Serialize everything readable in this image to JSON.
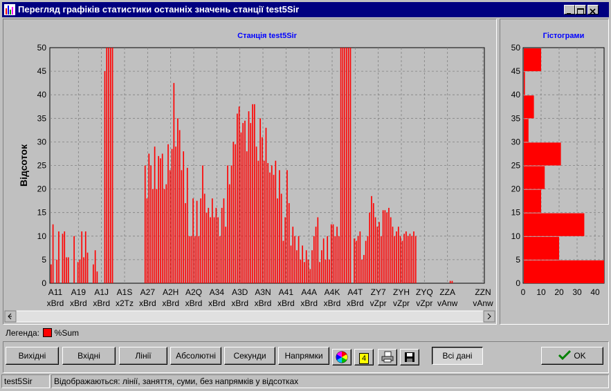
{
  "window": {
    "title": "Перегляд графіків статистики останніх значень станції test5Sir",
    "minimize_glyph": "_",
    "maximize_glyph": "□",
    "close_glyph": "✕"
  },
  "legend": {
    "label": "Легенда:",
    "series_label": "%Sum",
    "color": "#ff0000"
  },
  "buttons": {
    "outputs": "Вихідні",
    "inputs": "Вхідні",
    "lines": "Лінії",
    "absolute": "Абсолютні",
    "seconds": "Секунди",
    "directions": "Напрямки",
    "count_badge": "4",
    "all_data": "Всі дані",
    "ok": "OK"
  },
  "status": {
    "station": "test5Sir",
    "message": "Відображаються: лінії, заняття, суми, без напрямків у відсотках"
  },
  "colors": {
    "bar": "#ff0000",
    "title_text": "#0000ff",
    "plot_bg": "#c0c0c0",
    "grid": "#808080"
  },
  "chart_data": [
    {
      "type": "bar",
      "title": "Станція test5Sir",
      "ylabel": "Відсоток",
      "xlabel": "",
      "ylim": [
        0,
        50
      ],
      "yticks": [
        0,
        5,
        10,
        15,
        20,
        25,
        30,
        35,
        40,
        45,
        50
      ],
      "grid": true,
      "x_tick_labels": [
        {
          "line1": "A11",
          "line2": "xBrd"
        },
        {
          "line1": "A19",
          "line2": "xBrd"
        },
        {
          "line1": "A1J",
          "line2": "xBrd"
        },
        {
          "line1": "A1S",
          "line2": "x2Tz"
        },
        {
          "line1": "A27",
          "line2": "xBrd"
        },
        {
          "line1": "A2H",
          "line2": "xBrd"
        },
        {
          "line1": "A2Q",
          "line2": "xBrd"
        },
        {
          "line1": "A34",
          "line2": "xBrd"
        },
        {
          "line1": "A3D",
          "line2": "xBrd"
        },
        {
          "line1": "A3N",
          "line2": "xBrd"
        },
        {
          "line1": "A41",
          "line2": "xBrd"
        },
        {
          "line1": "A4A",
          "line2": "xBrd"
        },
        {
          "line1": "A4K",
          "line2": "xBrd"
        },
        {
          "line1": "A4T",
          "line2": "xBrd"
        },
        {
          "line1": "ZY7",
          "line2": "vZpr"
        },
        {
          "line1": "ZYH",
          "line2": "vZpr"
        },
        {
          "line1": "ZYQ",
          "line2": "vZpr"
        },
        {
          "line1": "ZZA",
          "line2": "vAnw"
        },
        {
          "line1": "ZZN",
          "line2": "vAnw"
        }
      ],
      "series": [
        {
          "name": "%Sum",
          "values": [
            4,
            12.5,
            0,
            5,
            11,
            0,
            10.5,
            11,
            5.5,
            5.5,
            0,
            0,
            10,
            0,
            4.5,
            5,
            11,
            5.5,
            11,
            6.5,
            0,
            0,
            4,
            7,
            2.5,
            0,
            0,
            0,
            45,
            50,
            50,
            50,
            50,
            0,
            0,
            0,
            0,
            0,
            0,
            0,
            0,
            0,
            0,
            0,
            0,
            0,
            0,
            0,
            0,
            25,
            18,
            27.5,
            25,
            20,
            29,
            20,
            27,
            26.5,
            27.5,
            20,
            21,
            29.5,
            24,
            28.5,
            42.5,
            29,
            35,
            32.5,
            24,
            28,
            17,
            24.5,
            10,
            10,
            18,
            10,
            17.5,
            10,
            18,
            25,
            19,
            15,
            16,
            14,
            18,
            14,
            16,
            14,
            10,
            16,
            18,
            12,
            25,
            21,
            25,
            30,
            29.5,
            36,
            37.5,
            32,
            34,
            34.5,
            28,
            36.5,
            34,
            38,
            38,
            29,
            26,
            35,
            31,
            26,
            33,
            25.5,
            23.5,
            25,
            23,
            26,
            18,
            24,
            19,
            9,
            14,
            24,
            17,
            8,
            12,
            10,
            7,
            10,
            5,
            8,
            4.5,
            7,
            5,
            3,
            7,
            10,
            12,
            14,
            4.5,
            7,
            9.5,
            5,
            10,
            5,
            12.5,
            12.5,
            10,
            12,
            10,
            50,
            50,
            50,
            50,
            50,
            50,
            0,
            9.5,
            9,
            10,
            11,
            5,
            6,
            9,
            10,
            15,
            18.5,
            17,
            14,
            12,
            13,
            10,
            15.5,
            15.5,
            15,
            16,
            14,
            12,
            10,
            11,
            12,
            10,
            9,
            10.5,
            11,
            10,
            10.5,
            10,
            11,
            10,
            0,
            0,
            0,
            0,
            0,
            0,
            0,
            0,
            0,
            0,
            0,
            0,
            0,
            0,
            0,
            0,
            0,
            0.5,
            0.5,
            0,
            0,
            0,
            0,
            0,
            0,
            0,
            0,
            0,
            0,
            0,
            0,
            0,
            0,
            0
          ]
        }
      ]
    },
    {
      "type": "bar",
      "orientation": "horizontal",
      "title": "Гістограми",
      "ylim": [
        0,
        50
      ],
      "yticks": [
        0,
        5,
        10,
        15,
        20,
        25,
        30,
        35,
        40,
        45,
        50
      ],
      "xlim": [
        0,
        45
      ],
      "xticks": [
        0,
        10,
        20,
        30,
        40
      ],
      "grid": true,
      "bins": [
        {
          "from": 0,
          "to": 5,
          "count": 45
        },
        {
          "from": 5,
          "to": 10,
          "count": 20
        },
        {
          "from": 10,
          "to": 15,
          "count": 34
        },
        {
          "from": 15,
          "to": 20,
          "count": 10
        },
        {
          "from": 20,
          "to": 25,
          "count": 12
        },
        {
          "from": 25,
          "to": 30,
          "count": 21
        },
        {
          "from": 30,
          "to": 35,
          "count": 3
        },
        {
          "from": 35,
          "to": 40,
          "count": 6
        },
        {
          "from": 40,
          "to": 45,
          "count": 1
        },
        {
          "from": 45,
          "to": 50,
          "count": 10
        }
      ]
    }
  ]
}
